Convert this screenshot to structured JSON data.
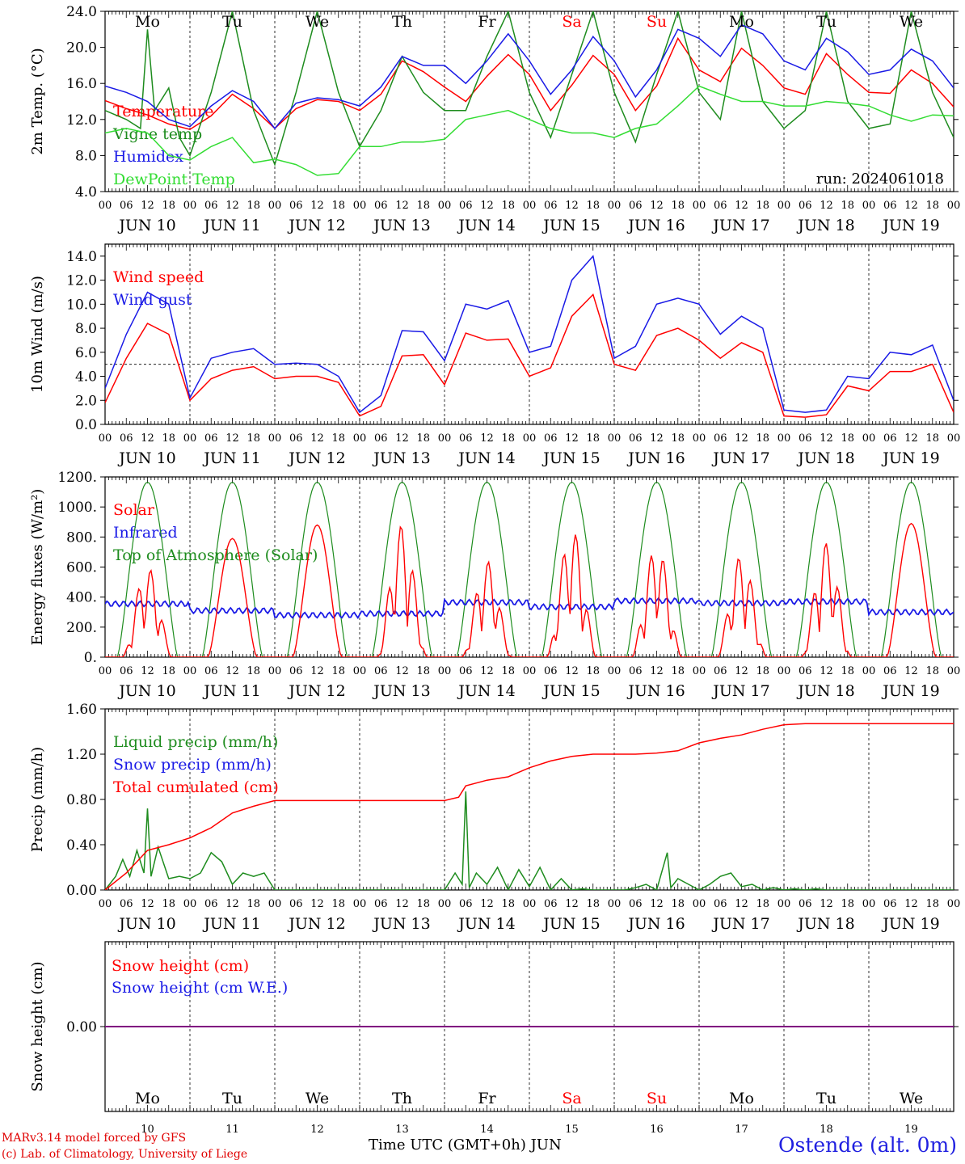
{
  "colors": {
    "red": "#ff0000",
    "green": "#1e8c1e",
    "lightgreen": "#33dd33",
    "blue": "#1a1ae6",
    "purple": "#800080"
  },
  "days": {
    "weekdays": [
      "Mo",
      "Tu",
      "We",
      "Th",
      "Fr",
      "Sa",
      "Su",
      "Mo",
      "Tu",
      "We"
    ],
    "weekend_indices": [
      5,
      6
    ],
    "dates": [
      "JUN 10",
      "JUN 11",
      "JUN 12",
      "JUN 13",
      "JUN 14",
      "JUN 15",
      "JUN 16",
      "JUN 17",
      "JUN 18",
      "JUN 19"
    ],
    "day_numbers": [
      "10",
      "11",
      "12",
      "13",
      "14",
      "15",
      "16",
      "17",
      "18",
      "19"
    ],
    "hour_ticks": [
      "00",
      "06",
      "12",
      "18"
    ],
    "final_tick": "00"
  },
  "footer": {
    "credit_line1": "MARv3.14 model forced by GFS",
    "credit_line2": "(c) Lab. of Climatology, University of Liege",
    "x_axis_title": "Time UTC (GMT+0h) JUN",
    "station": "Ostende (alt. 0m)"
  },
  "chart_data": [
    {
      "type": "line",
      "ylabel": "2m Temp. (°C)",
      "ylim": [
        4,
        24
      ],
      "yticks": [
        "4.0",
        "8.0",
        "12.0",
        "16.0",
        "20.0",
        "24.0"
      ],
      "run_label": "run: 2024061018",
      "x_unit": "hours since JUN 10 00 UTC",
      "legend": [
        {
          "label": "Temperature",
          "color": "red"
        },
        {
          "label": "Vigne temp",
          "color": "green"
        },
        {
          "label": "Humidex",
          "color": "blue"
        },
        {
          "label": "DewPoint Temp",
          "color": "lightgreen"
        }
      ],
      "series": [
        {
          "name": "Temperature",
          "color": "red",
          "x": [
            0,
            6,
            12,
            18,
            24,
            30,
            36,
            42,
            48,
            54,
            60,
            66,
            72,
            78,
            84,
            90,
            96,
            102,
            108,
            114,
            120,
            126,
            132,
            138,
            144,
            150,
            156,
            162,
            168,
            174,
            180,
            186,
            192,
            198,
            204,
            210,
            216,
            222,
            228,
            234,
            240
          ],
          "y": [
            14.1,
            13.2,
            12.5,
            11.5,
            10.9,
            12.4,
            14.8,
            13.2,
            11.0,
            13.2,
            14.2,
            14.0,
            13.0,
            14.8,
            18.5,
            17.3,
            15.6,
            14.0,
            16.8,
            19.2,
            17.0,
            13.0,
            15.8,
            19.1,
            17.0,
            13.0,
            15.7,
            21.0,
            17.5,
            16.2,
            19.9,
            18.0,
            15.5,
            14.8,
            19.3,
            17.0,
            15.0,
            14.9,
            17.5,
            16.0,
            13.4
          ]
        },
        {
          "name": "Vigne temp",
          "color": "green",
          "x": [
            0,
            6,
            10,
            12,
            14,
            18,
            21,
            24,
            30,
            36,
            42,
            48,
            54,
            60,
            66,
            72,
            78,
            84,
            90,
            96,
            102,
            108,
            114,
            120,
            126,
            132,
            138,
            144,
            150,
            156,
            162,
            168,
            174,
            180,
            186,
            192,
            198,
            204,
            210,
            216,
            222,
            228,
            234,
            240
          ],
          "y": [
            13.0,
            12.0,
            11.0,
            22.0,
            13.0,
            15.5,
            10.0,
            8.0,
            15.0,
            24.0,
            13.0,
            7.0,
            15.0,
            24.0,
            15.0,
            9.0,
            13.0,
            19.0,
            15.0,
            13.0,
            13.0,
            19.0,
            24.0,
            15.0,
            10.0,
            17.0,
            24.0,
            15.0,
            9.5,
            17.0,
            24.0,
            15.0,
            12.0,
            24.0,
            14.0,
            11.0,
            13.0,
            24.0,
            14.0,
            11.0,
            11.5,
            24.0,
            15.0,
            10.0
          ]
        },
        {
          "name": "Humidex",
          "color": "blue",
          "x": [
            0,
            6,
            12,
            18,
            24,
            30,
            36,
            42,
            48,
            54,
            60,
            66,
            72,
            78,
            84,
            90,
            96,
            102,
            108,
            114,
            120,
            126,
            132,
            138,
            144,
            150,
            156,
            162,
            168,
            174,
            180,
            186,
            192,
            198,
            204,
            210,
            216,
            222,
            228,
            234,
            240
          ],
          "y": [
            15.7,
            15.0,
            14.0,
            12.0,
            11.2,
            13.5,
            15.2,
            14.0,
            11.0,
            13.8,
            14.4,
            14.2,
            13.5,
            15.6,
            19.0,
            18.0,
            18.0,
            16.0,
            18.5,
            21.5,
            18.5,
            14.8,
            17.5,
            21.2,
            18.5,
            14.5,
            17.5,
            22.0,
            21.0,
            19.0,
            22.5,
            21.5,
            18.5,
            17.5,
            21.0,
            19.5,
            17.0,
            17.5,
            19.8,
            18.5,
            15.5
          ]
        },
        {
          "name": "DewPoint Temp",
          "color": "lightgreen",
          "x": [
            0,
            6,
            12,
            18,
            24,
            30,
            36,
            42,
            48,
            54,
            60,
            66,
            72,
            78,
            84,
            90,
            96,
            102,
            108,
            114,
            120,
            126,
            132,
            138,
            144,
            150,
            156,
            162,
            168,
            174,
            180,
            186,
            192,
            198,
            204,
            210,
            216,
            222,
            228,
            234,
            240
          ],
          "y": [
            10.5,
            11.0,
            10.5,
            8.0,
            7.5,
            9.0,
            10.0,
            7.2,
            7.6,
            7.0,
            5.8,
            6.0,
            9.0,
            9.0,
            9.5,
            9.5,
            9.8,
            12.0,
            12.5,
            13.0,
            12.0,
            11.0,
            10.5,
            10.5,
            10.0,
            11.0,
            11.5,
            13.5,
            15.7,
            14.8,
            14.0,
            14.0,
            13.5,
            13.5,
            14.0,
            13.8,
            13.5,
            12.5,
            11.8,
            12.5,
            12.4
          ]
        }
      ]
    },
    {
      "type": "line",
      "ylabel": "10m Wind (m/s)",
      "ylim": [
        0,
        15
      ],
      "yticks": [
        "0.0",
        "2.0",
        "4.0",
        "6.0",
        "8.0",
        "10.0",
        "12.0",
        "14.0"
      ],
      "reference_line": 5,
      "x_unit": "hours since JUN 10 00 UTC",
      "legend": [
        {
          "label": "Wind speed",
          "color": "red"
        },
        {
          "label": "Wind gust",
          "color": "blue"
        }
      ],
      "series": [
        {
          "name": "Wind speed",
          "color": "red",
          "x": [
            0,
            6,
            12,
            18,
            24,
            30,
            36,
            42,
            48,
            54,
            60,
            66,
            72,
            78,
            84,
            90,
            96,
            102,
            108,
            114,
            120,
            126,
            132,
            138,
            144,
            150,
            156,
            162,
            168,
            174,
            180,
            186,
            192,
            198,
            204,
            210,
            216,
            222,
            228,
            234,
            240
          ],
          "y": [
            1.8,
            5.5,
            8.4,
            7.5,
            2.0,
            3.8,
            4.5,
            4.8,
            3.8,
            4.0,
            4.0,
            3.5,
            0.7,
            1.5,
            5.7,
            5.8,
            3.3,
            7.6,
            7.0,
            7.1,
            4.0,
            4.7,
            9.0,
            10.8,
            5.0,
            4.5,
            7.4,
            8.0,
            7.0,
            5.5,
            6.8,
            6.0,
            0.7,
            0.6,
            0.8,
            3.2,
            2.8,
            4.4,
            4.4,
            5.0,
            1.0
          ]
        },
        {
          "name": "Wind gust",
          "color": "blue",
          "x": [
            0,
            6,
            12,
            18,
            24,
            30,
            36,
            42,
            48,
            54,
            60,
            66,
            72,
            78,
            84,
            90,
            96,
            102,
            108,
            114,
            120,
            126,
            132,
            138,
            144,
            150,
            156,
            162,
            168,
            174,
            180,
            186,
            192,
            198,
            204,
            210,
            216,
            222,
            228,
            234,
            240
          ],
          "y": [
            3.0,
            7.5,
            11.0,
            10.0,
            2.2,
            5.5,
            6.0,
            6.3,
            5.0,
            5.1,
            5.0,
            4.0,
            1.0,
            2.4,
            7.8,
            7.7,
            5.3,
            10.0,
            9.6,
            10.3,
            6.0,
            6.5,
            12.0,
            14.0,
            5.5,
            6.5,
            10.0,
            10.5,
            10.0,
            7.5,
            9.0,
            8.0,
            1.2,
            1.0,
            1.2,
            4.0,
            3.8,
            6.0,
            5.8,
            6.6,
            2.0
          ]
        }
      ]
    },
    {
      "type": "line",
      "ylabel": "Energy fluxes (W/m²)",
      "ylim": [
        0,
        1200
      ],
      "yticks": [
        "0.",
        "200.",
        "400.",
        "600.",
        "800.",
        "1000.",
        "1200."
      ],
      "x_unit": "hours since JUN 10 00 UTC",
      "legend": [
        {
          "label": "Solar",
          "color": "red"
        },
        {
          "label": "Infrared",
          "color": "blue"
        },
        {
          "label": "Top of Atmosphere (Solar)",
          "color": "green"
        }
      ],
      "toa_daily_max": 1165,
      "toa_daylight_hours": [
        3.5,
        20.5
      ],
      "solar_daily": [
        {
          "peak": 600,
          "spiky": true
        },
        {
          "peak": 790,
          "spiky": false
        },
        {
          "peak": 880,
          "spiky": false
        },
        {
          "peak": 880,
          "spiky": true
        },
        {
          "peak": 640,
          "spiky": true
        },
        {
          "peak": 860,
          "spiky": true
        },
        {
          "peak": 750,
          "spiky": true
        },
        {
          "peak": 680,
          "spiky": true
        },
        {
          "peak": 760,
          "spiky": true
        },
        {
          "peak": 890,
          "spiky": false
        }
      ],
      "infrared_daily": [
        355,
        310,
        280,
        290,
        365,
        335,
        375,
        360,
        370,
        300
      ]
    },
    {
      "type": "line",
      "ylabel": "Precip (mm/h)",
      "ylim": [
        0,
        1.6
      ],
      "yticks": [
        "0.00",
        "0.40",
        "0.80",
        "1.20",
        "1.60"
      ],
      "x_unit": "hours since JUN 10 00 UTC",
      "legend": [
        {
          "label": "Liquid precip (mm/h)",
          "color": "green"
        },
        {
          "label": "Snow precip (mm/h)",
          "color": "blue"
        },
        {
          "label": "Total cumulated (cm)",
          "color": "red"
        }
      ],
      "series": [
        {
          "name": "Liquid precip (mm/h)",
          "color": "green",
          "x": [
            0,
            3,
            5,
            7,
            9,
            11,
            12,
            13,
            15,
            18,
            21,
            24,
            27,
            30,
            33,
            36,
            39,
            42,
            45,
            48,
            96,
            99,
            101,
            102,
            103,
            105,
            108,
            111,
            114,
            117,
            120,
            123,
            126,
            129,
            132,
            135,
            138,
            141,
            144,
            147,
            150,
            153,
            156,
            159,
            160,
            162,
            165,
            168,
            171,
            174,
            177,
            180,
            183,
            186,
            189,
            192,
            195,
            198,
            201,
            204,
            207,
            210,
            213,
            216,
            240
          ],
          "y": [
            0.0,
            0.12,
            0.27,
            0.12,
            0.35,
            0.15,
            0.72,
            0.12,
            0.38,
            0.1,
            0.12,
            0.1,
            0.15,
            0.33,
            0.25,
            0.05,
            0.15,
            0.12,
            0.15,
            0.0,
            0.0,
            0.15,
            0.05,
            0.87,
            0.02,
            0.15,
            0.05,
            0.2,
            0.0,
            0.18,
            0.03,
            0.2,
            0.0,
            0.1,
            0.0,
            0.01,
            0.0,
            0.0,
            0.0,
            0.0,
            0.02,
            0.05,
            0.0,
            0.33,
            0.02,
            0.1,
            0.05,
            0.0,
            0.05,
            0.12,
            0.15,
            0.03,
            0.05,
            0.0,
            0.02,
            0.0,
            0.01,
            0.0,
            0.01,
            0.0,
            0.0,
            0.0,
            0.0,
            0.0,
            0.0
          ]
        },
        {
          "name": "Total cumulated (cm)",
          "color": "red",
          "x": [
            0,
            6,
            12,
            18,
            24,
            30,
            36,
            42,
            48,
            54,
            96,
            100,
            102,
            108,
            114,
            120,
            126,
            132,
            138,
            144,
            150,
            156,
            162,
            168,
            174,
            180,
            186,
            192,
            198,
            204,
            240
          ],
          "y": [
            0.0,
            0.15,
            0.35,
            0.4,
            0.46,
            0.55,
            0.68,
            0.74,
            0.79,
            0.79,
            0.79,
            0.82,
            0.92,
            0.97,
            1.0,
            1.08,
            1.14,
            1.18,
            1.2,
            1.2,
            1.2,
            1.21,
            1.23,
            1.3,
            1.34,
            1.37,
            1.42,
            1.46,
            1.47,
            1.47,
            1.47
          ]
        }
      ]
    },
    {
      "type": "line",
      "ylabel": "Snow height (cm)",
      "yticks": [
        "0.00"
      ],
      "x_unit": "hours since JUN 10 00 UTC",
      "legend": [
        {
          "label": "Snow height (cm)",
          "color": "red"
        },
        {
          "label": "Snow height (cm W.E.)",
          "color": "blue"
        }
      ],
      "series": [
        {
          "name": "Snow height (cm)",
          "color": "purple",
          "x": [
            0,
            240
          ],
          "y": [
            0.0,
            0.0
          ]
        }
      ]
    }
  ]
}
